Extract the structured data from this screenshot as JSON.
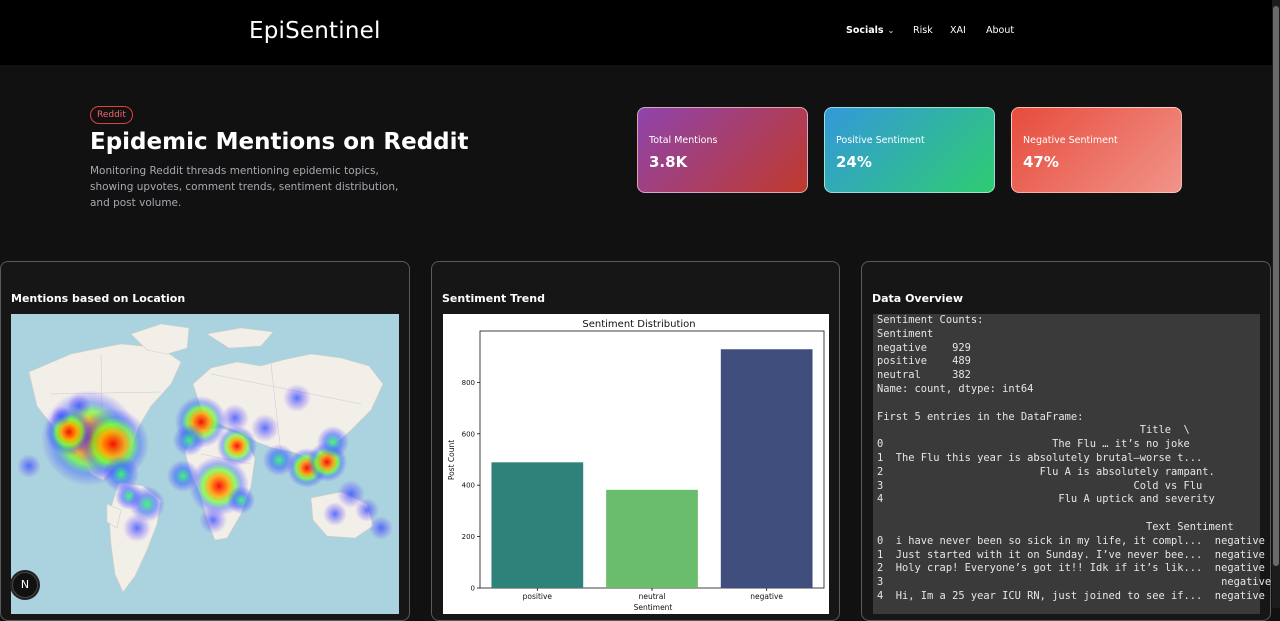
{
  "nav": {
    "brand": "EpiSentinel",
    "items": [
      {
        "label": "Socials",
        "has_dropdown": true
      },
      {
        "label": "Risk"
      },
      {
        "label": "XAI"
      },
      {
        "label": "About"
      }
    ]
  },
  "hero": {
    "tag": "Reddit",
    "title": "Epidemic Mentions on Reddit",
    "description": "Monitoring Reddit threads mentioning epidemic topics, showing upvotes, comment trends, sentiment distribution, and post volume."
  },
  "stats": [
    {
      "label": "Total Mentions",
      "value": "3.8K"
    },
    {
      "label": "Positive Sentiment",
      "value": "24%"
    },
    {
      "label": "Negative Sentiment",
      "value": "47%"
    }
  ],
  "cards": {
    "map_title": "Mentions based on Location",
    "trend_title": "Sentiment Trend",
    "overview_title": "Data Overview"
  },
  "chart_data": {
    "type": "bar",
    "title": "Sentiment Distribution",
    "xlabel": "Sentiment",
    "ylabel": "Post Count",
    "categories": [
      "positive",
      "neutral",
      "negative"
    ],
    "values": [
      489,
      382,
      929
    ],
    "colors": [
      "#2e8279",
      "#6abd6c",
      "#3f4e7d"
    ],
    "ylim": [
      0,
      1000
    ],
    "yticks": [
      0,
      200,
      400,
      600,
      800
    ]
  },
  "overview": {
    "lines": [
      "Sentiment Counts:",
      "Sentiment",
      "negative    929",
      "positive    489",
      "neutral     382",
      "Name: count, dtype: int64",
      "",
      "First 5 entries in the DataFrame:",
      "                                          Title  \\",
      "0                           The Flu … it’s no joke",
      "1  The Flu this year is absolutely brutal—worse t...",
      "2                         Flu A is absolutely rampant.",
      "3                                        Cold vs Flu",
      "4                            Flu A uptick and severity",
      "",
      "                                           Text Sentiment",
      "0  i have never been so sick in my life, it compl...  negative",
      "1  Just started with it on Sunday. I’ve never bee...  negative",
      "2  Holy crap! Everyone’s got it!! Idk if it’s lik...  negative",
      "3                                                      negative",
      "4  Hi, Im a 25 year ICU RN, just joined to see if...  negative"
    ]
  },
  "badge": "N"
}
